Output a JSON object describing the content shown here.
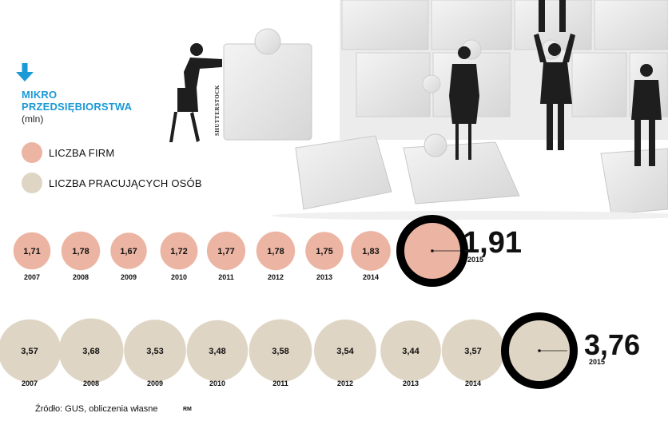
{
  "header": {
    "title_line1": "MIKRO",
    "title_line2": "PRZEDSIĘBIORSTWA",
    "unit": "(mln)"
  },
  "legend": [
    {
      "label": "LICZBA FIRM",
      "color": "#ecb5a3"
    },
    {
      "label": "LICZBA PRACUJĄCYCH OSÓB",
      "color": "#dfd5c4"
    }
  ],
  "illustration": {
    "credit": "SHUTTERSTOCK"
  },
  "colors": {
    "accent": "#1a9ad6",
    "firms": "#ecb5a3",
    "workers": "#dfd5c4",
    "ring": "#000000"
  },
  "chart_data": [
    {
      "type": "bubble",
      "series_name": "LICZBA FIRM",
      "x": [
        "2007",
        "2008",
        "2009",
        "2010",
        "2011",
        "2012",
        "2013",
        "2014",
        "2015"
      ],
      "values": [
        1.71,
        1.78,
        1.67,
        1.72,
        1.77,
        1.78,
        1.75,
        1.83,
        1.91
      ],
      "value_labels": [
        "1,71",
        "1,78",
        "1,67",
        "1,72",
        "1,77",
        "1,78",
        "1,75",
        "1,83",
        "1,91"
      ],
      "highlight": "2015"
    },
    {
      "type": "bubble",
      "series_name": "LICZBA PRACUJĄCYCH OSÓB",
      "x": [
        "2007",
        "2008",
        "2009",
        "2010",
        "2011",
        "2012",
        "2013",
        "2014",
        "2015"
      ],
      "values": [
        3.57,
        3.68,
        3.53,
        3.48,
        3.58,
        3.54,
        3.44,
        3.57,
        3.76
      ],
      "value_labels": [
        "3,57",
        "3,68",
        "3,53",
        "3,48",
        "3,58",
        "3,54",
        "3,44",
        "3,57",
        "3,76"
      ],
      "highlight": "2015"
    }
  ],
  "footer": {
    "source": "Źródło: GUS, obliczenia własne",
    "signature": "RM"
  }
}
